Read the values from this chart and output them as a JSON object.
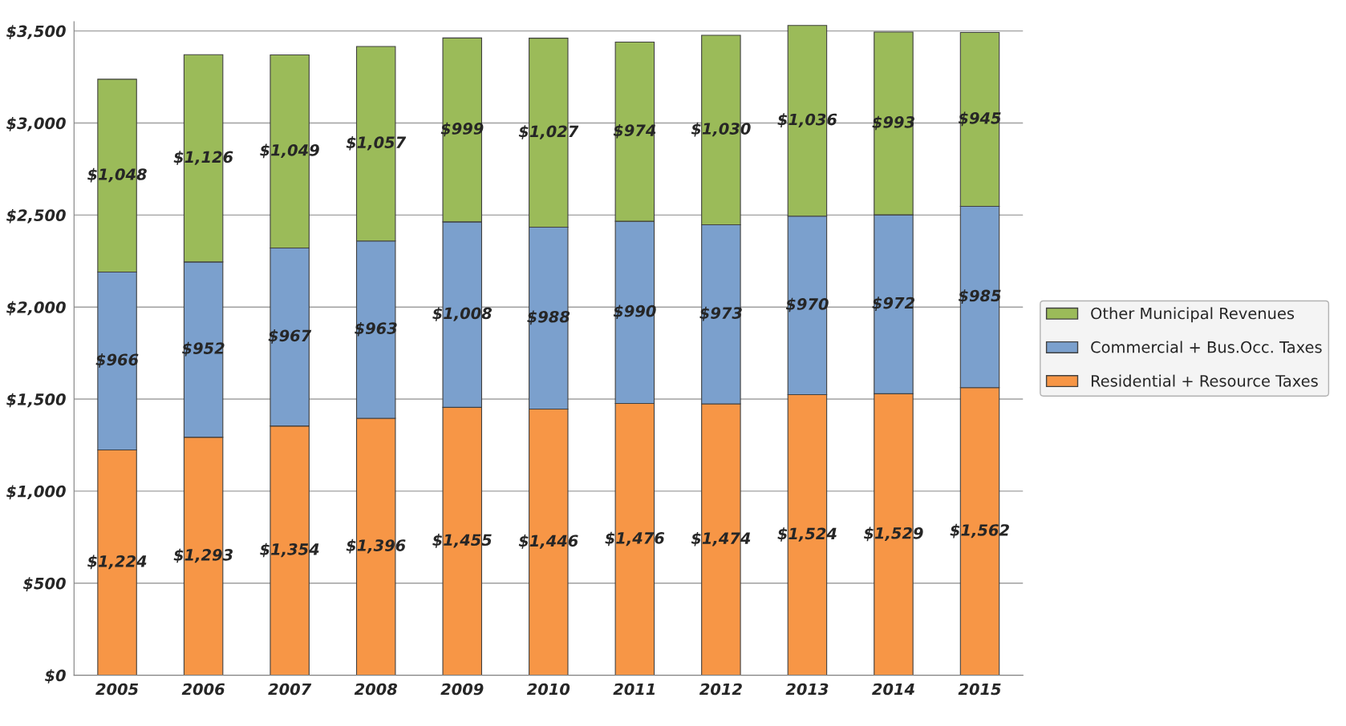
{
  "chart_data": {
    "type": "bar",
    "stacked": true,
    "categories": [
      "2005",
      "2006",
      "2007",
      "2008",
      "2009",
      "2010",
      "2011",
      "2012",
      "2013",
      "2014",
      "2015"
    ],
    "series": [
      {
        "name": "Residential + Resource Taxes",
        "color": "#f79646",
        "values": [
          1224,
          1293,
          1354,
          1396,
          1455,
          1446,
          1476,
          1474,
          1524,
          1529,
          1562
        ],
        "value_labels": [
          "$1,224",
          "$1,293",
          "$1,354",
          "$1,396",
          "$1,455",
          "$1,446",
          "$1,476",
          "$1,474",
          "$1,524",
          "$1,529",
          "$1,562"
        ]
      },
      {
        "name": "Commercial + Bus.Occ. Taxes",
        "color": "#7ba0cd",
        "values": [
          966,
          952,
          967,
          963,
          1008,
          988,
          990,
          973,
          970,
          972,
          985
        ],
        "value_labels": [
          "$966",
          "$952",
          "$967",
          "$963",
          "$1,008",
          "$988",
          "$990",
          "$973",
          "$970",
          "$972",
          "$985"
        ]
      },
      {
        "name": "Other Municipal Revenues",
        "color": "#9bbb59",
        "values": [
          1048,
          1126,
          1049,
          1057,
          999,
          1027,
          974,
          1030,
          1036,
          993,
          945
        ],
        "value_labels": [
          "$1,048",
          "$1,126",
          "$1,049",
          "$1,057",
          "$999",
          "$1,027",
          "$974",
          "$1,030",
          "$1,036",
          "$993",
          "$945"
        ]
      }
    ],
    "ylim": [
      0,
      3550
    ],
    "yticks": [
      {
        "value": 0,
        "label": "$0"
      },
      {
        "value": 500,
        "label": "$500"
      },
      {
        "value": 1000,
        "label": "$1,000"
      },
      {
        "value": 1500,
        "label": "$1,500"
      },
      {
        "value": 2000,
        "label": "$2,000"
      },
      {
        "value": 2500,
        "label": "$2,500"
      },
      {
        "value": 3000,
        "label": "$3,000"
      },
      {
        "value": 3500,
        "label": "$3,500"
      }
    ],
    "grid": "y",
    "legend": "right"
  }
}
